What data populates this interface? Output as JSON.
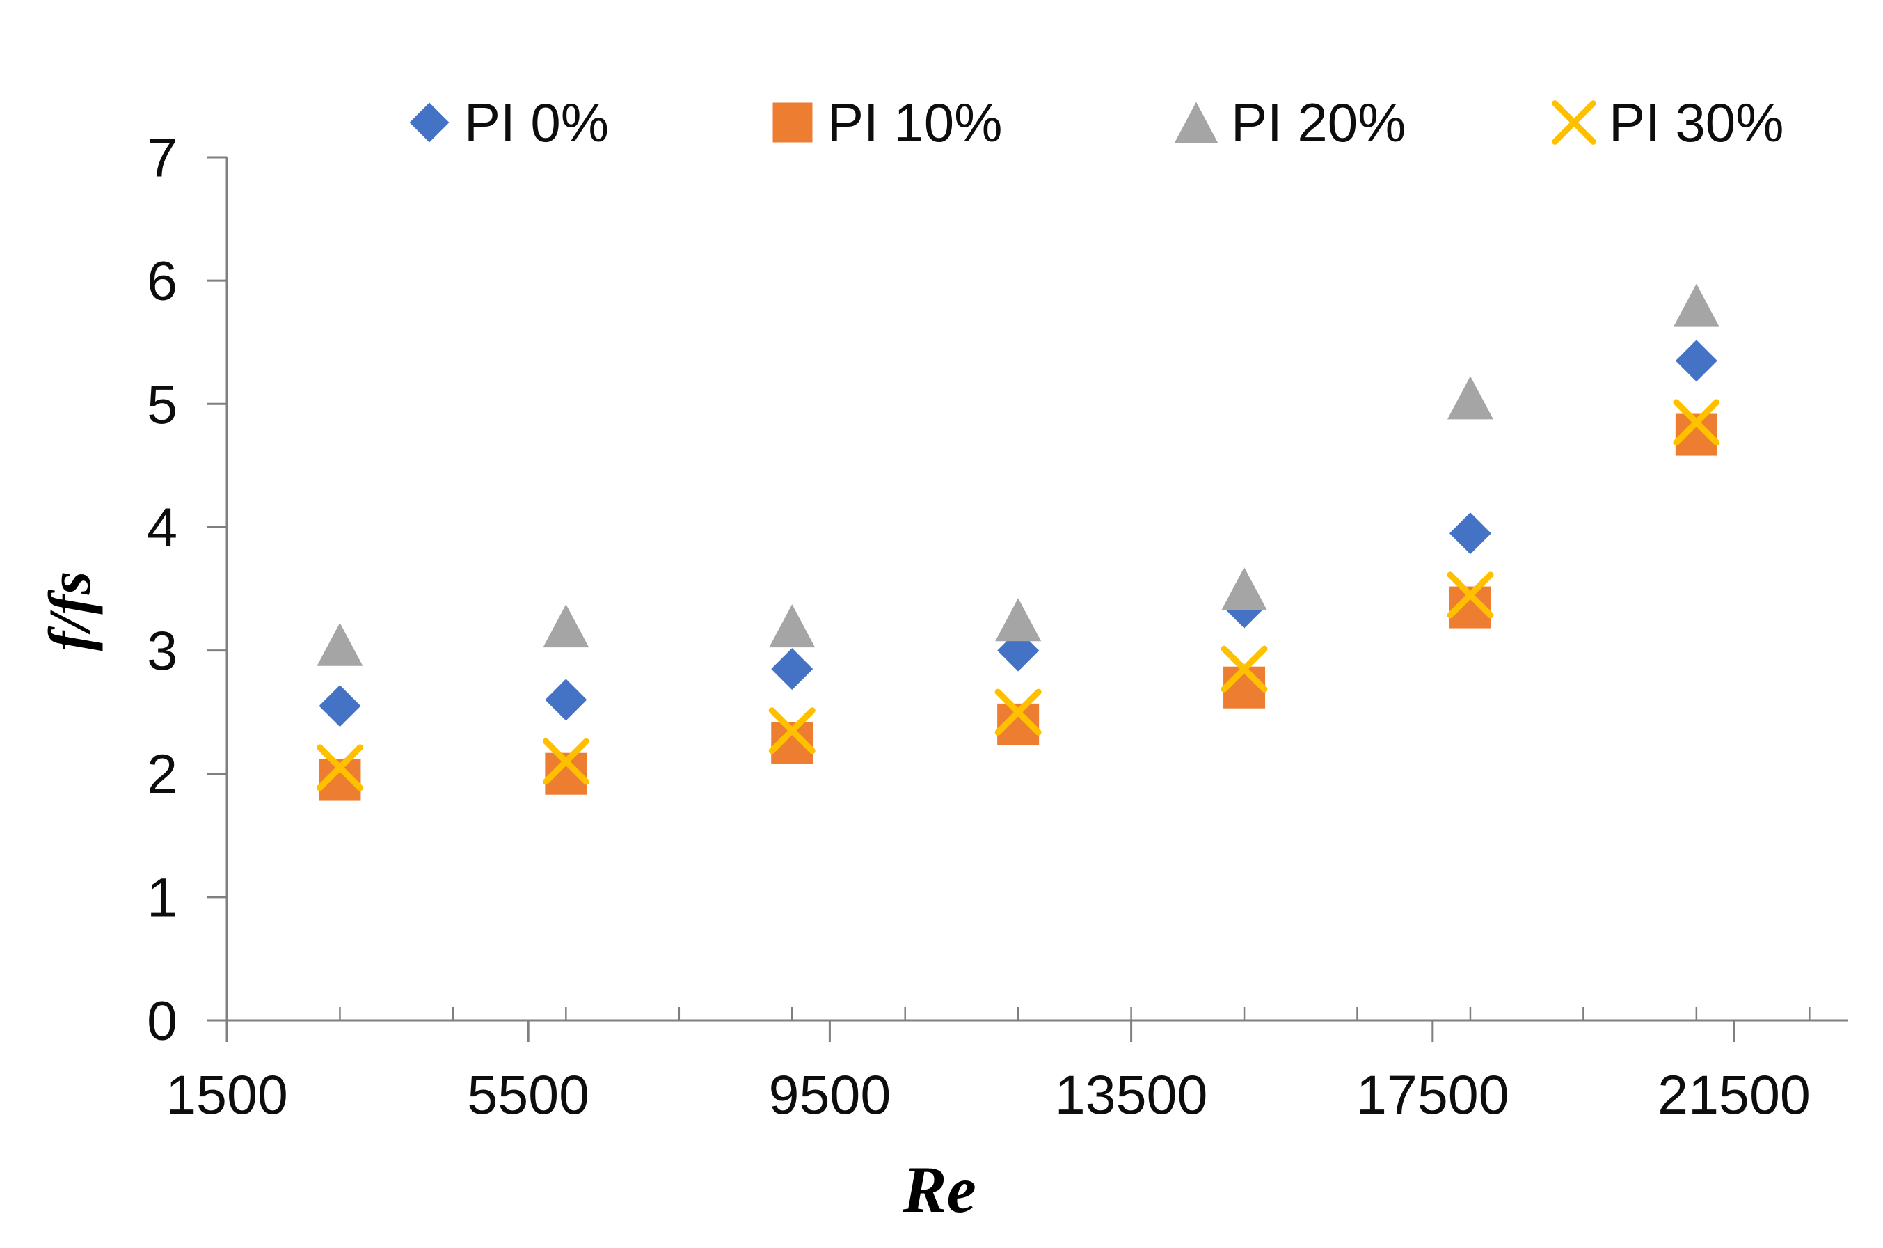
{
  "chart_data": {
    "type": "scatter",
    "title": "",
    "xlabel": "Re",
    "ylabel": "f/fs",
    "x_axis": {
      "min": 1500,
      "max": 23000,
      "major_ticks": [
        1500,
        5500,
        9500,
        13500,
        17500,
        21500
      ],
      "minor_step": 1500,
      "minor_max": 22500
    },
    "y_axis": {
      "min": 0,
      "max": 7,
      "ticks": [
        0,
        1,
        2,
        3,
        4,
        5,
        6,
        7
      ]
    },
    "x": [
      3000,
      6000,
      9000,
      12000,
      15000,
      18000,
      21000
    ],
    "series": [
      {
        "name": "PI 0%",
        "marker": "diamond",
        "color": "#4472C4",
        "values": [
          2.55,
          2.6,
          2.85,
          3.0,
          3.35,
          3.95,
          5.35
        ]
      },
      {
        "name": "PI 10%",
        "marker": "square",
        "color": "#ED7D31",
        "values": [
          1.95,
          2.0,
          2.25,
          2.4,
          2.7,
          3.35,
          4.75
        ]
      },
      {
        "name": "PI 20%",
        "marker": "triangle",
        "color": "#A5A5A5",
        "values": [
          3.05,
          3.2,
          3.2,
          3.25,
          3.5,
          5.05,
          5.8
        ]
      },
      {
        "name": "PI 30%",
        "marker": "x",
        "color": "#FFC000",
        "values": [
          2.05,
          2.1,
          2.35,
          2.5,
          2.85,
          3.45,
          4.85
        ]
      }
    ],
    "legend_position": "top",
    "grid": false,
    "axis_color": "#7f7f7f",
    "text_color": "#0d0d0d"
  }
}
